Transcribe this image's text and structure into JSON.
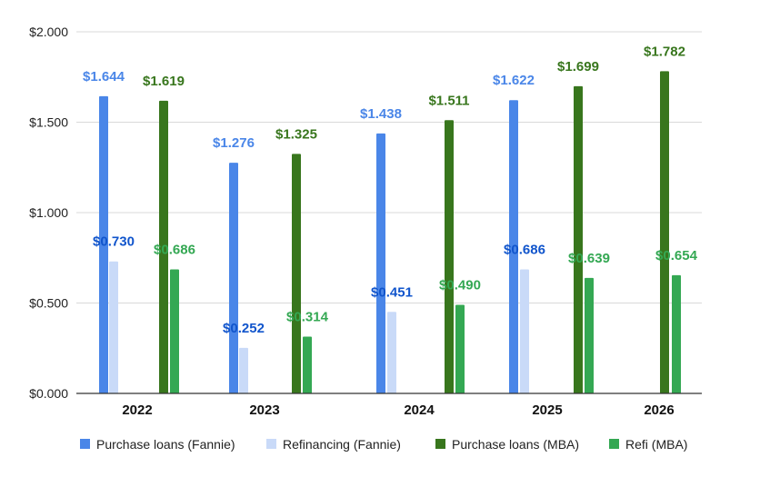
{
  "chart_data": {
    "type": "bar",
    "title": "",
    "xlabel": "",
    "ylabel": "",
    "ylim": [
      0,
      2
    ],
    "yticks": [
      "$0.000",
      "$0.500",
      "$1.000",
      "$1.500",
      "$2.000"
    ],
    "grid": true,
    "legend_position": "bottom",
    "categories": [
      "2022",
      "2023",
      "2024",
      "2025",
      "2026"
    ],
    "series": [
      {
        "name": "Purchase loans (Fannie)",
        "color": "#4a86e8",
        "label_color": "#4a86e8",
        "values": [
          1.644,
          1.276,
          1.438,
          1.622,
          null
        ],
        "labels": [
          "$1.644",
          "$1.276",
          "$1.438",
          "$1.622",
          null
        ]
      },
      {
        "name": "Refinancing (Fannie)",
        "color": "#c9daf8",
        "label_color": "#1155cc",
        "values": [
          0.73,
          0.252,
          0.451,
          0.686,
          null
        ],
        "labels": [
          "$0.730",
          "$0.252",
          "$0.451",
          "$0.686",
          null
        ]
      },
      {
        "name": "Purchase loans (MBA)",
        "color": "#38761d",
        "label_color": "#38761d",
        "values": [
          1.619,
          1.325,
          1.511,
          1.699,
          1.782
        ],
        "labels": [
          "$1.619",
          "$1.325",
          "$1.511",
          "$1.699",
          "$1.782"
        ]
      },
      {
        "name": "Refi (MBA)",
        "color": "#34a853",
        "label_color": "#34a853",
        "values": [
          0.686,
          0.314,
          0.49,
          0.639,
          0.654
        ],
        "labels": [
          "$0.686",
          "$0.314",
          "$0.490",
          "$0.639",
          "$0.654"
        ]
      }
    ]
  }
}
